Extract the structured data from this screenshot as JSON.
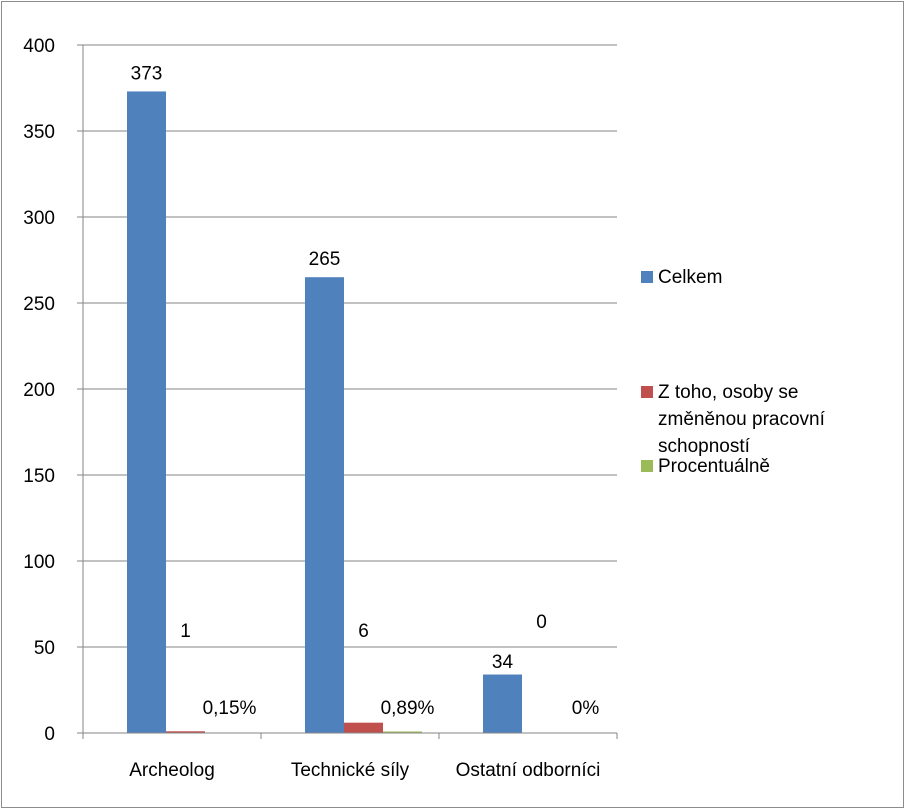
{
  "chart_data": {
    "type": "bar",
    "categories": [
      "Archeolog",
      "Technické síly",
      "Ostatní odborníci"
    ],
    "series": [
      {
        "name": "Celkem",
        "values": [
          373,
          265,
          34
        ],
        "labels": [
          "373",
          "265",
          "34"
        ],
        "color": "#4f81bd"
      },
      {
        "name": "Z toho, osoby se změněnou pracovní schopností",
        "values": [
          1,
          6,
          0
        ],
        "labels": [
          "1",
          "6",
          "0"
        ],
        "color": "#c0504d"
      },
      {
        "name": "Procentuálně",
        "values": [
          0.15,
          0.89,
          0
        ],
        "labels": [
          "0,15%",
          "0,89%",
          "0%"
        ],
        "color": "#9bbb59"
      }
    ],
    "legend_lines": [
      [
        "Celkem"
      ],
      [
        "Z toho, osoby se",
        "změněnou  pracovní",
        "schopností"
      ],
      [
        "Procentuálně"
      ]
    ],
    "yticks": [
      "0",
      "50",
      "100",
      "150",
      "200",
      "250",
      "300",
      "350",
      "400"
    ],
    "ylim": [
      0,
      400
    ],
    "grid": true,
    "legend_position": "right",
    "title": "",
    "xlabel": "",
    "ylabel": ""
  }
}
